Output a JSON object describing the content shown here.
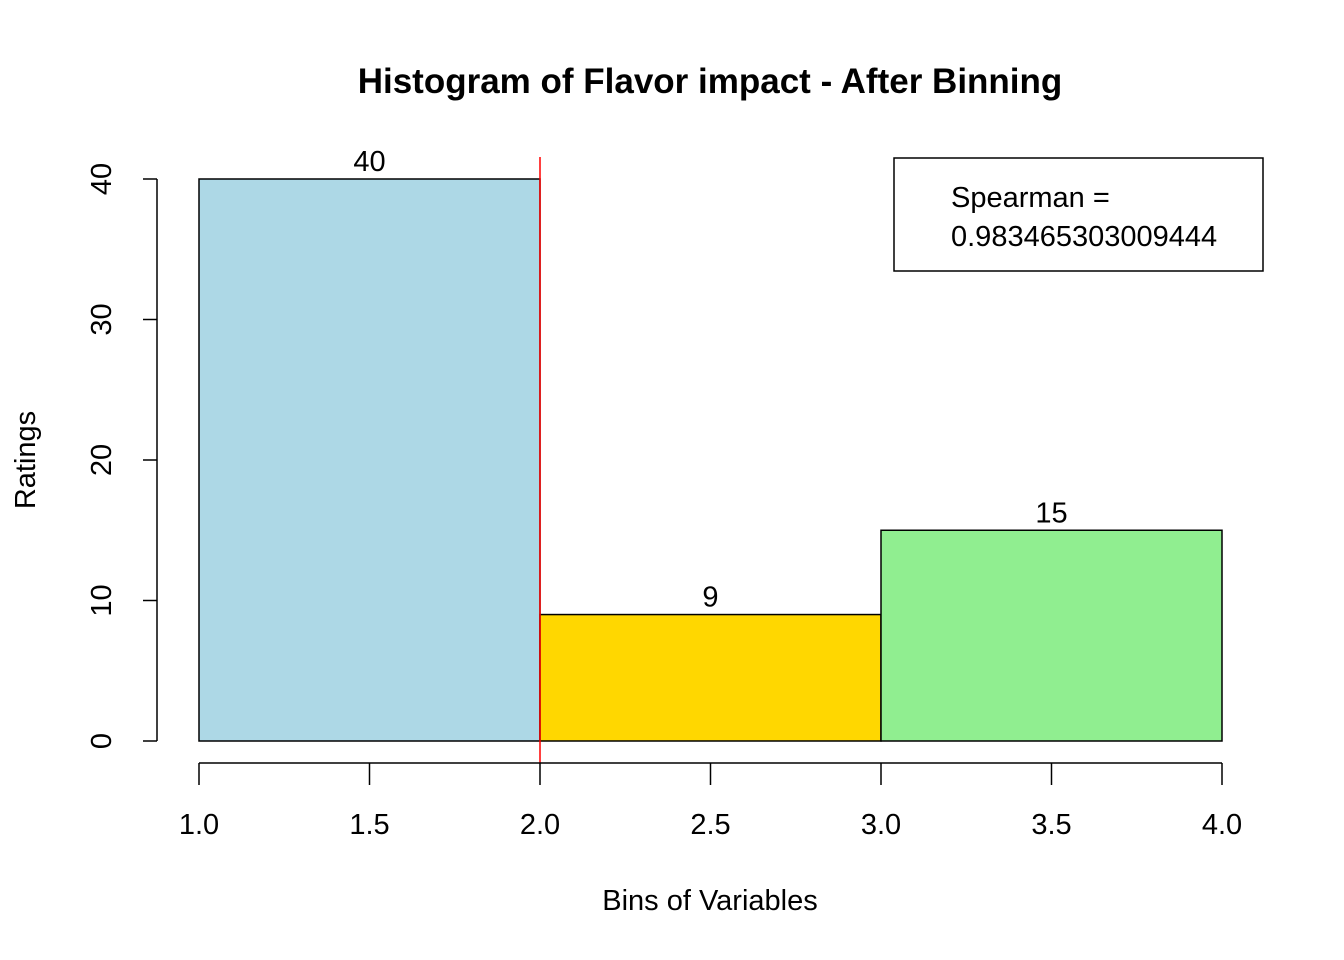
{
  "chart_data": {
    "type": "bar",
    "title": "Histogram of Flavor impact - After Binning",
    "xlabel": "Bins of Variables",
    "ylabel": "Ratings",
    "xlim": [
      1.0,
      4.0
    ],
    "ylim": [
      0,
      40
    ],
    "x_ticks": [
      "1.0",
      "1.5",
      "2.0",
      "2.5",
      "3.0",
      "3.5",
      "4.0"
    ],
    "y_ticks": [
      "0",
      "10",
      "20",
      "30",
      "40"
    ],
    "bins": [
      {
        "start": 1.0,
        "end": 2.0,
        "value": 40,
        "label": "40",
        "color": "#ADD8E6"
      },
      {
        "start": 2.0,
        "end": 3.0,
        "value": 9,
        "label": "9",
        "color": "#FFD700"
      },
      {
        "start": 3.0,
        "end": 4.0,
        "value": 15,
        "label": "15",
        "color": "#90EE90"
      }
    ],
    "reference_line": {
      "x": 2.0,
      "color": "#FF0000"
    },
    "legend": {
      "position": "top-right",
      "lines": [
        "Spearman =",
        "0.983465303009444"
      ]
    },
    "grid": false
  }
}
